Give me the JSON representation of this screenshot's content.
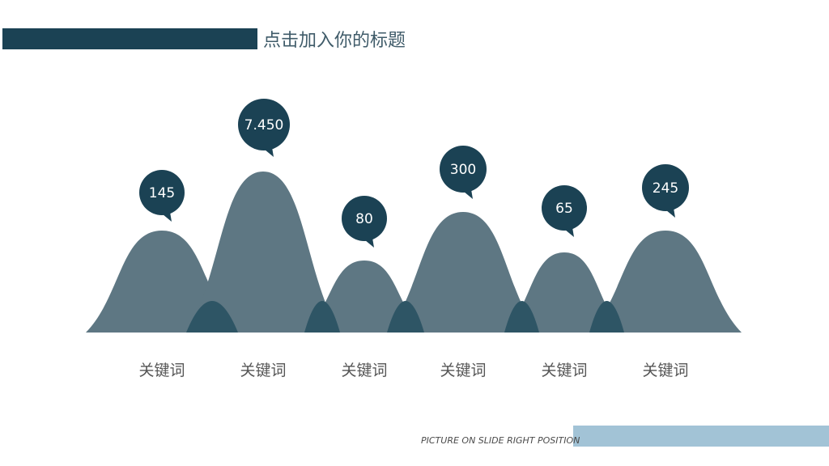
{
  "header": {
    "title": "点击加入你的标题"
  },
  "footer": {
    "text": "PICTURE ON SLIDE RIGHT POSITION"
  },
  "colors": {
    "dark": "#1b4254",
    "mountain": "#5e7783",
    "overlap": "#2e5565",
    "accent_bar": "#a2c3d6"
  },
  "chart_data": {
    "type": "area",
    "categories": [
      "关键词",
      "关键词",
      "关键词",
      "关键词",
      "关键词",
      "关键词"
    ],
    "value_labels": [
      "145",
      "7.450",
      "80",
      "300",
      "65",
      "245"
    ],
    "values": [
      145,
      7450,
      80,
      300,
      65,
      245
    ]
  }
}
